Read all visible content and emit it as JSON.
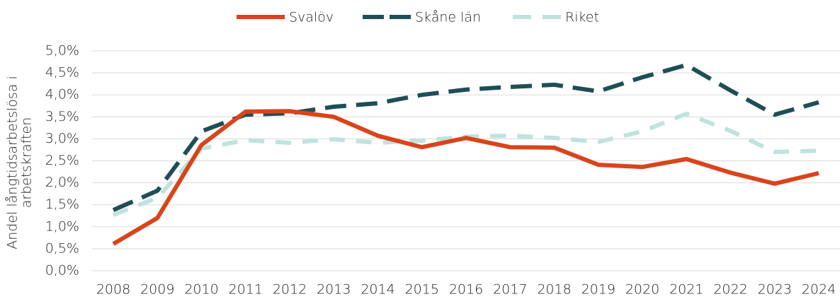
{
  "chart_data": {
    "type": "line",
    "ylabel": [
      "Andel långtidsarbetslösa i",
      "arbetskraften"
    ],
    "categories": [
      "2008",
      "2009",
      "2010",
      "2011",
      "2012",
      "2013",
      "2014",
      "2015",
      "2016",
      "2017",
      "2018",
      "2019",
      "2020",
      "2021",
      "2022",
      "2023",
      "2024"
    ],
    "series": [
      {
        "name": "Svalöv",
        "color": "#d9441a",
        "dash": "solid",
        "values": [
          0.61,
          1.2,
          2.86,
          3.62,
          3.63,
          3.5,
          3.07,
          2.81,
          3.02,
          2.81,
          2.8,
          2.41,
          2.36,
          2.54,
          2.23,
          1.98,
          2.22
        ]
      },
      {
        "name": "Skåne län",
        "color": "#1f4e56",
        "dash": "long",
        "values": [
          1.38,
          1.82,
          3.17,
          3.55,
          3.58,
          3.73,
          3.81,
          4.0,
          4.12,
          4.18,
          4.23,
          4.08,
          4.4,
          4.68,
          4.1,
          3.55,
          3.83
        ]
      },
      {
        "name": "Riket",
        "color": "#bfe3df",
        "dash": "short",
        "values": [
          1.27,
          1.66,
          2.78,
          2.97,
          2.91,
          2.99,
          2.91,
          2.96,
          3.05,
          3.07,
          3.02,
          2.93,
          3.17,
          3.57,
          3.18,
          2.7,
          2.73
        ]
      }
    ],
    "ylim": [
      0,
      5
    ],
    "yticks": [
      {
        "value": 0,
        "label": "0,0%"
      },
      {
        "value": 0.5,
        "label": "0,5%"
      },
      {
        "value": 1,
        "label": "1,0%"
      },
      {
        "value": 1.5,
        "label": "1,5%"
      },
      {
        "value": 2,
        "label": "2,0%"
      },
      {
        "value": 2.5,
        "label": "2,5%"
      },
      {
        "value": 3,
        "label": "3,0%"
      },
      {
        "value": 3.5,
        "label": "3,5%"
      },
      {
        "value": 4,
        "label": "4,0%"
      },
      {
        "value": 4.5,
        "label": "4,5%"
      },
      {
        "value": 5,
        "label": "5,0%"
      }
    ],
    "grid": true,
    "legend": "top"
  }
}
